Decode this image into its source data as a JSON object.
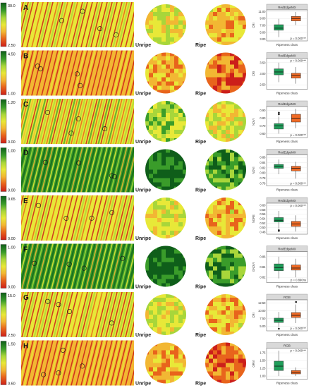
{
  "labels": {
    "unripe": "Unripe",
    "ripe": "Ripe"
  },
  "colors": {
    "colormap": [
      "#cc1f1a",
      "#e8641c",
      "#f2b733",
      "#e8e838",
      "#a8d63a",
      "#3a9c2a",
      "#0f5e1a"
    ],
    "box_green": "#1f9e5a",
    "box_orange": "#f06a24",
    "strip_bg": "#d9d9d9"
  },
  "rows": [
    {
      "letter": "A",
      "cb_max": "30.0",
      "cb_min": "2.50",
      "scene": "warm"
    },
    {
      "letter": "B",
      "cb_max": "4.50",
      "cb_min": "1.00",
      "scene": "red"
    },
    {
      "letter": "C",
      "cb_max": "1.20",
      "cb_min": "0.00",
      "scene": "yellow"
    },
    {
      "letter": "D",
      "cb_max": "1.00",
      "cb_min": "0.00",
      "scene": "green"
    },
    {
      "letter": "E",
      "cb_max": "0.65",
      "cb_min": "0.00",
      "scene": "warm"
    },
    {
      "letter": "F",
      "cb_max": "1.00",
      "cb_min": "0.00",
      "scene": "green"
    },
    {
      "letter": "G",
      "cb_max": "15.0",
      "cb_min": "2.50",
      "scene": "warm"
    },
    {
      "letter": "H",
      "cb_max": "1.50",
      "cb_min": "0.60",
      "scene": "red"
    }
  ],
  "chart_data": [
    {
      "type": "box",
      "title": "RedEdgeMX",
      "ylabel": "CRI",
      "xlabel": "Ripeness class",
      "yticks": [
        "3.00",
        "5.00",
        "7.00",
        "9.00",
        "11.00"
      ],
      "ylim": [
        2.5,
        11.5
      ],
      "p_text": "p = 0.000***",
      "p_pos": "bottom",
      "series": [
        {
          "q1": 5.6,
          "median": 6.2,
          "q3": 7.2,
          "whisker_low": 3.6,
          "whisker_high": 8.9,
          "outliers": []
        },
        {
          "q1": 8.3,
          "median": 9.0,
          "q3": 9.6,
          "whisker_low": 7.1,
          "whisker_high": 10.9,
          "outliers": []
        }
      ]
    },
    {
      "type": "box",
      "title": "RedEdgeMX",
      "ylabel": "CRI",
      "xlabel": "Ripeness class",
      "yticks": [
        "2.50",
        "3.00",
        "3.50"
      ],
      "ylim": [
        2.3,
        3.7
      ],
      "p_text": "p = 0.000***",
      "p_pos": "top",
      "series": [
        {
          "q1": 2.95,
          "median": 3.08,
          "q3": 3.22,
          "whisker_low": 2.62,
          "whisker_high": 3.5,
          "outliers": []
        },
        {
          "q1": 2.8,
          "median": 2.92,
          "q3": 3.02,
          "whisker_low": 2.55,
          "whisker_high": 3.3,
          "outliers": []
        }
      ]
    },
    {
      "type": "box",
      "title": "RedEdgeMX",
      "ylabel": "NDVI",
      "xlabel": "Ripeness class",
      "yticks": [
        "0.60",
        "0.70",
        "0.80",
        "0.90"
      ],
      "ylim": [
        0.55,
        0.95
      ],
      "p_text": "p = 0.000***",
      "p_pos": "bottom",
      "series": [
        {
          "q1": 0.66,
          "median": 0.7,
          "q3": 0.73,
          "whisker_low": 0.6,
          "whisker_high": 0.82,
          "outliers": [
            0.85,
            0.87
          ]
        },
        {
          "q1": 0.75,
          "median": 0.8,
          "q3": 0.85,
          "whisker_low": 0.67,
          "whisker_high": 0.92,
          "outliers": []
        }
      ]
    },
    {
      "type": "box",
      "title": "RedEdgeMX",
      "ylabel": "NDVI",
      "xlabel": "Ripeness class",
      "yticks": [
        "0.76",
        "0.78",
        "0.80",
        "0.82",
        "0.84",
        "0.86"
      ],
      "ylim": [
        0.75,
        0.87
      ],
      "p_text": "p = 0.000***",
      "p_pos": "bottom",
      "series": [
        {
          "q1": 0.818,
          "median": 0.826,
          "q3": 0.833,
          "whisker_low": 0.795,
          "whisker_high": 0.852,
          "outliers": []
        },
        {
          "q1": 0.808,
          "median": 0.818,
          "q3": 0.826,
          "whisker_low": 0.778,
          "whisker_high": 0.843,
          "outliers": []
        }
      ]
    },
    {
      "type": "box",
      "title": "RedEdgeMX",
      "ylabel": "NDRE",
      "xlabel": "Ripeness class",
      "yticks": [
        "0.48",
        "0.50",
        "0.52",
        "0.54",
        "0.56",
        "0.58",
        "0.60"
      ],
      "ylim": [
        0.47,
        0.61
      ],
      "p_text": "p = 0.000***",
      "p_pos": "top",
      "series": [
        {
          "q1": 0.525,
          "median": 0.533,
          "q3": 0.545,
          "whisker_low": 0.495,
          "whisker_high": 0.575,
          "outliers": [
            0.488,
            0.485
          ]
        },
        {
          "q1": 0.505,
          "median": 0.516,
          "q3": 0.528,
          "whisker_low": 0.482,
          "whisker_high": 0.555,
          "outliers": []
        }
      ]
    },
    {
      "type": "box",
      "title": "RedEdgeMX",
      "ylabel": "GNDVI",
      "xlabel": "Ripeness class",
      "yticks": [
        "0.82",
        "0.84",
        "0.86"
      ],
      "ylim": [
        0.81,
        0.87
      ],
      "p_text": "p = 0.890ns",
      "p_pos": "bottom",
      "series": [
        {
          "q1": 0.833,
          "median": 0.839,
          "q3": 0.846,
          "whisker_low": 0.818,
          "whisker_high": 0.86,
          "outliers": []
        },
        {
          "q1": 0.834,
          "median": 0.838,
          "q3": 0.844,
          "whisker_low": 0.82,
          "whisker_high": 0.856,
          "outliers": []
        }
      ]
    },
    {
      "type": "box",
      "title": "RGB",
      "ylabel": "CRI",
      "xlabel": "Ripeness class",
      "yticks": [
        "5.00",
        "7.50",
        "10.00",
        "12.50"
      ],
      "ylim": [
        3.5,
        13.5
      ],
      "p_text": "p = 0.000***",
      "p_pos": "bottom",
      "series": [
        {
          "q1": 6.2,
          "median": 6.9,
          "q3": 7.6,
          "whisker_low": 4.8,
          "whisker_high": 9.6,
          "outliers": [
            4.2
          ]
        },
        {
          "q1": 7.8,
          "median": 8.5,
          "q3": 9.4,
          "whisker_low": 6.0,
          "whisker_high": 12.0,
          "outliers": [
            12.8
          ]
        }
      ]
    },
    {
      "type": "box",
      "title": "RGB",
      "ylabel": "GRVI",
      "xlabel": "Ripeness class",
      "yticks": [
        "1.00",
        "1.25",
        "1.50",
        "1.75"
      ],
      "ylim": [
        0.9,
        1.9
      ],
      "p_text": "p = 0.000***",
      "p_pos": "top",
      "series": [
        {
          "q1": 1.18,
          "median": 1.32,
          "q3": 1.48,
          "whisker_low": 1.0,
          "whisker_high": 1.82,
          "outliers": []
        },
        {
          "q1": 1.07,
          "median": 1.12,
          "q3": 1.18,
          "whisker_low": 1.0,
          "whisker_high": 1.28,
          "outliers": []
        }
      ]
    }
  ]
}
